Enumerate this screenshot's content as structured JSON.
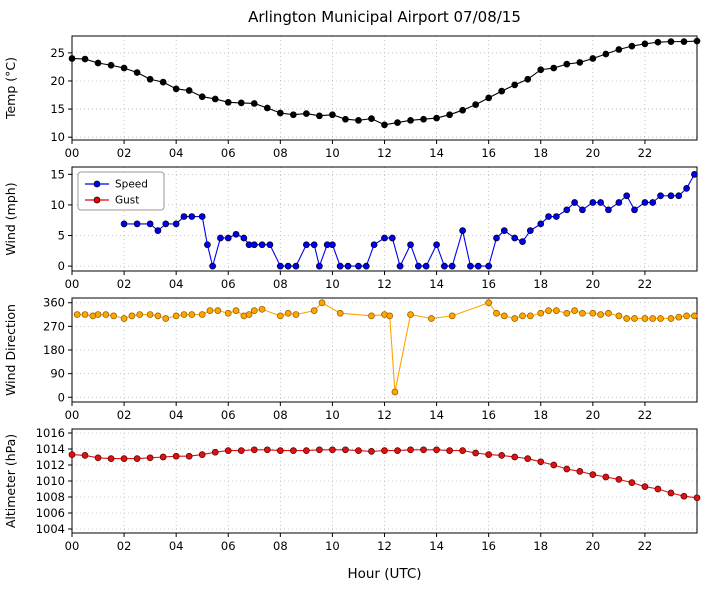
{
  "chart_data": {
    "type": "line",
    "title": "Arlington Municipal Airport 07/08/15",
    "xlabel": "Hour (UTC)",
    "xlim": [
      0,
      24
    ],
    "xticks": [
      0,
      2,
      4,
      6,
      8,
      10,
      12,
      14,
      16,
      18,
      20,
      22
    ],
    "xtick_labels": [
      "00",
      "02",
      "04",
      "06",
      "08",
      "10",
      "12",
      "14",
      "16",
      "18",
      "20",
      "22"
    ],
    "grid": "dotted",
    "panels": [
      {
        "name": "temperature",
        "ylabel": "Temp (°C)",
        "ylim": [
          9.5,
          28
        ],
        "yticks": [
          10,
          15,
          20,
          25
        ],
        "legend": false,
        "series": [
          {
            "name": "Temp",
            "color": "#000000",
            "edge": "#000000",
            "x": [
              0,
              0.5,
              1,
              1.5,
              2,
              2.5,
              3,
              3.5,
              4,
              4.5,
              5,
              5.5,
              6,
              6.5,
              7,
              7.5,
              8,
              8.5,
              9,
              9.5,
              10,
              10.5,
              11,
              11.5,
              12,
              12.5,
              13,
              13.5,
              14,
              14.5,
              15,
              15.5,
              16,
              16.5,
              17,
              17.5,
              18,
              18.5,
              19,
              19.5,
              20,
              20.5,
              21,
              21.5,
              22,
              22.5,
              23,
              23.5,
              24
            ],
            "y": [
              24.0,
              23.9,
              23.2,
              22.8,
              22.3,
              21.5,
              20.3,
              19.8,
              18.6,
              18.3,
              17.2,
              16.8,
              16.2,
              16.1,
              16.0,
              15.2,
              14.3,
              14.0,
              14.2,
              13.8,
              14.0,
              13.2,
              13.0,
              13.3,
              12.2,
              12.6,
              13.0,
              13.2,
              13.4,
              14.0,
              14.8,
              15.8,
              17.0,
              18.2,
              19.3,
              20.3,
              22.0,
              22.3,
              23.0,
              23.3,
              24.0,
              24.8,
              25.6,
              26.2,
              26.6,
              26.9,
              27.0,
              27.0,
              27.1
            ]
          }
        ]
      },
      {
        "name": "wind",
        "ylabel": "Wind (mph)",
        "ylim": [
          -0.8,
          16.2
        ],
        "yticks": [
          0,
          5,
          10,
          15
        ],
        "legend": true,
        "series": [
          {
            "name": "Speed",
            "color": "#0000ee",
            "edge": "#000000",
            "x": [
              2,
              2.5,
              3,
              3.3,
              3.6,
              4,
              4.3,
              4.6,
              5,
              5.2,
              5.4,
              5.7,
              6,
              6.3,
              6.6,
              6.8,
              7,
              7.3,
              7.6,
              8,
              8.3,
              8.6,
              9,
              9.3,
              9.5,
              9.8,
              10,
              10.3,
              10.6,
              11,
              11.3,
              11.6,
              12,
              12.3,
              12.6,
              13,
              13.3,
              13.6,
              14,
              14.3,
              14.6,
              15,
              15.3,
              15.6,
              16,
              16.3,
              16.6,
              17,
              17.3,
              17.6,
              18,
              18.3,
              18.6,
              19,
              19.3,
              19.6,
              20,
              20.3,
              20.6,
              21,
              21.3,
              21.6,
              22,
              22.3,
              22.6,
              23,
              23.3,
              23.6,
              23.9
            ],
            "y": [
              6.9,
              6.9,
              6.9,
              5.8,
              6.9,
              6.9,
              8.1,
              8.1,
              8.1,
              3.5,
              0,
              4.6,
              4.6,
              5.2,
              4.6,
              3.5,
              3.5,
              3.5,
              3.5,
              0,
              0,
              0,
              3.5,
              3.5,
              0,
              3.5,
              3.5,
              0,
              0,
              0,
              0,
              3.5,
              4.6,
              4.6,
              0,
              3.5,
              0,
              0,
              3.5,
              0,
              0,
              5.8,
              0,
              0,
              0,
              4.6,
              5.8,
              4.6,
              4.0,
              5.8,
              6.9,
              8.1,
              8.1,
              9.2,
              10.4,
              9.2,
              10.4,
              10.4,
              9.2,
              10.4,
              11.5,
              9.2,
              10.4,
              10.4,
              11.5,
              11.5,
              11.5,
              12.7,
              15.0
            ]
          },
          {
            "name": "Gust",
            "color": "#ee0000",
            "edge": "#000000",
            "x": [],
            "y": []
          }
        ]
      },
      {
        "name": "wind-direction",
        "ylabel": "Wind Direction",
        "ylim": [
          -18,
          378
        ],
        "yticks": [
          0,
          90,
          180,
          270,
          360
        ],
        "legend": false,
        "series": [
          {
            "name": "Direction",
            "color": "#ffa500",
            "edge": "#8a5a00",
            "x": [
              0.2,
              0.5,
              0.8,
              1,
              1.3,
              1.6,
              2,
              2.3,
              2.6,
              3,
              3.3,
              3.6,
              4,
              4.3,
              4.6,
              5,
              5.3,
              5.6,
              6,
              6.3,
              6.6,
              6.8,
              7,
              7.3,
              8,
              8.3,
              8.6,
              9.3,
              9.6,
              10.3,
              11.5,
              12,
              12.2,
              12.4,
              13,
              13.8,
              14.6,
              16,
              16.3,
              16.6,
              17,
              17.3,
              17.6,
              18,
              18.3,
              18.6,
              19,
              19.3,
              19.6,
              20,
              20.3,
              20.6,
              21,
              21.3,
              21.6,
              22,
              22.3,
              22.6,
              23,
              23.3,
              23.6,
              23.9
            ],
            "y": [
              315,
              315,
              310,
              315,
              315,
              310,
              300,
              310,
              315,
              315,
              310,
              300,
              310,
              315,
              315,
              315,
              330,
              330,
              320,
              330,
              310,
              315,
              330,
              335,
              310,
              320,
              315,
              330,
              360,
              320,
              310,
              315,
              310,
              20,
              315,
              300,
              310,
              360,
              320,
              310,
              300,
              310,
              310,
              320,
              330,
              330,
              320,
              330,
              320,
              320,
              315,
              320,
              310,
              300,
              300,
              300,
              300,
              300,
              300,
              305,
              310,
              310
            ]
          }
        ]
      },
      {
        "name": "altimeter",
        "ylabel": "Altimeter (hPa)",
        "ylim": [
          1003.5,
          1016.5
        ],
        "yticks": [
          1004,
          1006,
          1008,
          1010,
          1012,
          1014,
          1016
        ],
        "legend": false,
        "series": [
          {
            "name": "Altimeter",
            "color": "#dd1111",
            "edge": "#550000",
            "x": [
              0,
              0.5,
              1,
              1.5,
              2,
              2.5,
              3,
              3.5,
              4,
              4.5,
              5,
              5.5,
              6,
              6.5,
              7,
              7.5,
              8,
              8.5,
              9,
              9.5,
              10,
              10.5,
              11,
              11.5,
              12,
              12.5,
              13,
              13.5,
              14,
              14.5,
              15,
              15.5,
              16,
              16.5,
              17,
              17.5,
              18,
              18.5,
              19,
              19.5,
              20,
              20.5,
              21,
              21.5,
              22,
              22.5,
              23,
              23.5,
              24
            ],
            "y": [
              1013.3,
              1013.2,
              1012.9,
              1012.8,
              1012.8,
              1012.8,
              1012.9,
              1013.0,
              1013.1,
              1013.1,
              1013.3,
              1013.6,
              1013.8,
              1013.8,
              1013.9,
              1013.9,
              1013.8,
              1013.8,
              1013.8,
              1013.9,
              1013.9,
              1013.9,
              1013.8,
              1013.7,
              1013.8,
              1013.8,
              1013.9,
              1013.9,
              1013.9,
              1013.8,
              1013.8,
              1013.5,
              1013.3,
              1013.2,
              1013.0,
              1012.8,
              1012.4,
              1012.0,
              1011.5,
              1011.2,
              1010.8,
              1010.5,
              1010.2,
              1009.8,
              1009.3,
              1009.0,
              1008.5,
              1008.1,
              1007.9
            ]
          }
        ]
      }
    ]
  }
}
